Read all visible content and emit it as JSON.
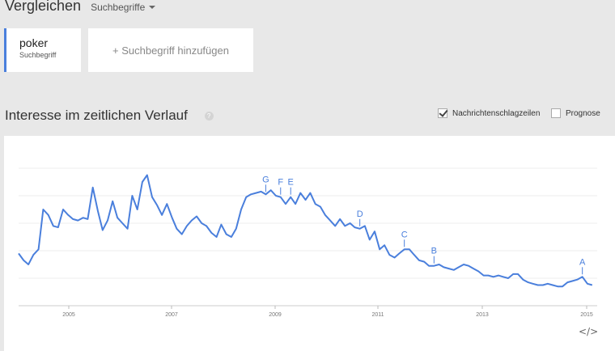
{
  "header": {
    "title": "Vergleichen",
    "dropdown_label": "Suchbegriffe"
  },
  "terms": [
    {
      "term": "poker",
      "type": "Suchbegriff",
      "color": "#4a7fdc"
    }
  ],
  "add_term_label": "+ Suchbegriff hinzufügen",
  "section": {
    "title": "Interesse im zeitlichen Verlauf",
    "help": "?",
    "checkbox_news": {
      "label": "Nachrichtenschlagzeilen",
      "checked": true
    },
    "checkbox_forecast": {
      "label": "Prognose",
      "checked": false
    }
  },
  "chart_data": {
    "type": "line",
    "x_tick_labels": [
      "2005",
      "2007",
      "2009",
      "2011",
      "2013",
      "2015"
    ],
    "series": [
      {
        "color": "#4a7fdc",
        "points": [
          [
            2004.0,
            38
          ],
          [
            2004.17,
            33
          ],
          [
            2004.33,
            30
          ],
          [
            2004.5,
            37
          ],
          [
            2004.67,
            41
          ],
          [
            2004.83,
            70
          ],
          [
            2005.0,
            66
          ],
          [
            2005.17,
            58
          ],
          [
            2005.33,
            57
          ],
          [
            2005.5,
            70
          ],
          [
            2005.67,
            66
          ],
          [
            2005.83,
            63
          ],
          [
            2006.0,
            62
          ],
          [
            2006.17,
            64
          ],
          [
            2006.33,
            63
          ],
          [
            2006.5,
            86
          ],
          [
            2006.67,
            69
          ],
          [
            2006.83,
            55
          ],
          [
            2007.0,
            62
          ],
          [
            2007.17,
            76
          ],
          [
            2007.33,
            64
          ],
          [
            2007.5,
            60
          ],
          [
            2007.67,
            56
          ],
          [
            2007.83,
            80
          ],
          [
            2008.0,
            70
          ],
          [
            2008.17,
            90
          ],
          [
            2008.33,
            95
          ],
          [
            2008.5,
            79
          ],
          [
            2008.67,
            73
          ],
          [
            2008.83,
            66
          ],
          [
            2009.0,
            74
          ],
          [
            2009.17,
            64
          ],
          [
            2009.33,
            56
          ],
          [
            2009.5,
            52
          ],
          [
            2009.67,
            58
          ],
          [
            2009.83,
            62
          ],
          [
            2010.0,
            65
          ],
          [
            2010.17,
            60
          ],
          [
            2010.33,
            58
          ],
          [
            2010.5,
            53
          ],
          [
            2010.67,
            50
          ],
          [
            2010.83,
            59
          ],
          [
            2011.0,
            52
          ],
          [
            2011.17,
            50
          ],
          [
            2011.33,
            56
          ],
          [
            2011.5,
            70
          ],
          [
            2011.67,
            79
          ],
          [
            2011.83,
            81
          ],
          [
            2012.0,
            82
          ],
          [
            2012.17,
            83
          ],
          [
            2012.33,
            81
          ],
          [
            2012.5,
            84
          ],
          [
            2012.67,
            80
          ],
          [
            2012.83,
            79
          ],
          [
            2013.0,
            74
          ],
          [
            2013.17,
            79
          ],
          [
            2013.33,
            74
          ],
          [
            2013.5,
            82
          ],
          [
            2013.67,
            77
          ],
          [
            2013.83,
            82
          ],
          [
            2014.0,
            74
          ],
          [
            2014.17,
            72
          ],
          [
            2014.33,
            66
          ],
          [
            2014.5,
            62
          ],
          [
            2014.67,
            58
          ],
          [
            2014.83,
            63
          ],
          [
            2015.0,
            58
          ],
          [
            2015.17,
            60
          ],
          [
            2015.33,
            57
          ],
          [
            2015.5,
            56
          ],
          [
            2015.67,
            58
          ],
          [
            2015.83,
            48
          ],
          [
            2016.0,
            54
          ],
          [
            2016.17,
            41
          ],
          [
            2016.33,
            44
          ],
          [
            2016.5,
            37
          ],
          [
            2016.67,
            35
          ],
          [
            2016.83,
            38
          ],
          [
            2017.0,
            41
          ],
          [
            2017.17,
            41
          ],
          [
            2017.33,
            37
          ],
          [
            2017.5,
            33
          ],
          [
            2017.67,
            32
          ],
          [
            2017.83,
            29
          ],
          [
            2018.0,
            29
          ],
          [
            2018.17,
            30
          ],
          [
            2018.33,
            28
          ],
          [
            2018.5,
            27
          ],
          [
            2018.67,
            26
          ],
          [
            2018.83,
            28
          ],
          [
            2019.0,
            30
          ],
          [
            2019.17,
            29
          ],
          [
            2019.33,
            27
          ],
          [
            2019.5,
            25
          ],
          [
            2019.67,
            22
          ],
          [
            2019.83,
            22
          ],
          [
            2020.0,
            21
          ],
          [
            2020.17,
            22
          ],
          [
            2020.33,
            21
          ],
          [
            2020.5,
            20
          ],
          [
            2020.67,
            23
          ],
          [
            2020.83,
            23
          ],
          [
            2021.0,
            19
          ],
          [
            2021.17,
            17
          ],
          [
            2021.33,
            16
          ],
          [
            2021.5,
            15
          ],
          [
            2021.67,
            15
          ],
          [
            2021.83,
            16
          ],
          [
            2022.0,
            15
          ],
          [
            2022.17,
            14
          ],
          [
            2022.33,
            14
          ],
          [
            2022.5,
            17
          ],
          [
            2022.67,
            18
          ],
          [
            2022.83,
            19
          ],
          [
            2023.0,
            21
          ],
          [
            2023.17,
            16
          ],
          [
            2023.33,
            15
          ]
        ]
      }
    ],
    "annotations": [
      {
        "label": "G",
        "x": 2012.33
      },
      {
        "label": "F",
        "x": 2012.83
      },
      {
        "label": "E",
        "x": 2013.17
      },
      {
        "label": "D",
        "x": 2015.5
      },
      {
        "label": "C",
        "x": 2017.0
      },
      {
        "label": "B",
        "x": 2018.0
      },
      {
        "label": "A",
        "x": 2023.0
      }
    ],
    "ylim": [
      0,
      100
    ],
    "grid": true,
    "legend": "none"
  }
}
